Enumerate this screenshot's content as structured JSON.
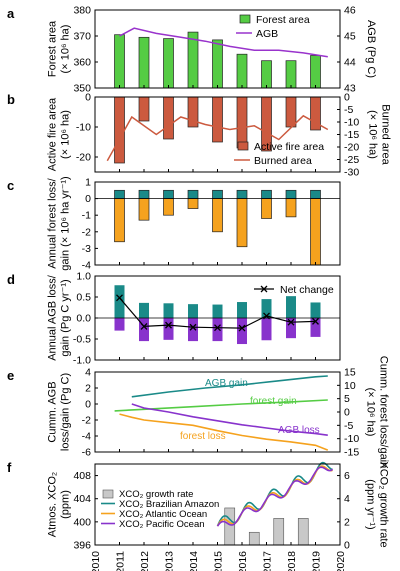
{
  "figure": {
    "year_ticks": [
      "2010",
      "2011",
      "2012",
      "2013",
      "2014",
      "2015",
      "2016",
      "2017",
      "2018",
      "2019",
      "2020"
    ],
    "year_range": [
      2010,
      2020
    ]
  },
  "chart_data": [
    {
      "panel": "a",
      "type": "bar",
      "ylabel_left": "Forest area",
      "ylabel_left_unit": "(× 10⁶ ha)",
      "ylabel_right": "AGB (Pg C)",
      "ylim_left": [
        350,
        380
      ],
      "yticks_left": [
        350,
        360,
        370,
        380
      ],
      "ylim_right": [
        43,
        46
      ],
      "yticks_right": [
        43,
        44,
        45,
        46
      ],
      "legend": [
        "Forest area",
        "AGB"
      ],
      "colors": {
        "bar": "#55cc44",
        "line": "#9933cc"
      },
      "series": [
        {
          "name": "Forest area",
          "axis": "left",
          "kind": "bar",
          "x": [
            2011,
            2012,
            2013,
            2014,
            2015,
            2016,
            2017,
            2018,
            2019
          ],
          "values": [
            370.5,
            369.5,
            369,
            371.5,
            368.5,
            363,
            360.5,
            360.5,
            362.5
          ]
        },
        {
          "name": "AGB",
          "axis": "right",
          "kind": "line",
          "x": [
            2011,
            2011.6,
            2012.5,
            2013.5,
            2014.5,
            2015.5,
            2016.5,
            2017.5,
            2018.5,
            2019.5
          ],
          "values": [
            45.0,
            45.3,
            45.1,
            44.95,
            44.8,
            44.6,
            44.45,
            44.45,
            44.35,
            44.2
          ]
        }
      ]
    },
    {
      "panel": "b",
      "type": "bar",
      "ylabel_left": "Active fire area",
      "ylabel_left_unit": "(× 10⁶ ha)",
      "ylabel_right": "Burned area",
      "ylabel_right_unit": "(× 10⁶ ha)",
      "ylim_left": [
        -25,
        0
      ],
      "yticks_left": [
        -20,
        -10,
        0
      ],
      "ylim_right": [
        -30,
        0
      ],
      "yticks_right": [
        -30,
        -25,
        -20,
        -15,
        -10,
        -5,
        0
      ],
      "legend": [
        "Active fire area",
        "Burned area"
      ],
      "colors": {
        "bar": "#cc5a3f",
        "line": "#cc5a3f"
      },
      "series": [
        {
          "name": "Active fire area",
          "axis": "left",
          "kind": "bar",
          "x": [
            2011,
            2012,
            2013,
            2014,
            2015,
            2016,
            2017,
            2018,
            2019
          ],
          "values": [
            -22,
            -8,
            -14,
            -10,
            -15,
            -17,
            -18,
            -10,
            -11
          ]
        },
        {
          "name": "Burned area",
          "axis": "right",
          "kind": "line",
          "x": [
            2010.5,
            2011.5,
            2012.5,
            2013.5,
            2014.5,
            2015.5,
            2016.5,
            2017.5,
            2018.5,
            2019.5
          ],
          "values": [
            -25.5,
            -8,
            -15,
            -8,
            -11,
            -13,
            -11.5,
            -17,
            -7.5,
            -13
          ]
        }
      ]
    },
    {
      "panel": "c",
      "type": "bar",
      "ylabel": "Annual forest loss/ gain (× 10⁶ ha yr⁻¹)",
      "ylim": [
        -4,
        1
      ],
      "yticks": [
        -4,
        -3,
        -2,
        -1,
        0,
        1
      ],
      "colors": {
        "gain": "#1a8a88",
        "loss": "#f5a21e"
      },
      "series": [
        {
          "name": "gain",
          "x": [
            2011,
            2012,
            2013,
            2014,
            2015,
            2016,
            2017,
            2018,
            2019
          ],
          "values": [
            0.5,
            0.5,
            0.5,
            0.5,
            0.5,
            0.5,
            0.5,
            0.5,
            0.5
          ]
        },
        {
          "name": "loss",
          "x": [
            2011,
            2012,
            2013,
            2014,
            2015,
            2016,
            2017,
            2018,
            2019
          ],
          "values": [
            -2.6,
            -1.3,
            -1.0,
            -0.6,
            -2.0,
            -2.9,
            -1.2,
            -1.1,
            -4.0
          ]
        }
      ]
    },
    {
      "panel": "d",
      "type": "bar",
      "ylabel": "Annual AGB loss/ gain (Pg C yr⁻¹)",
      "ylim": [
        -1.0,
        1.0
      ],
      "yticks": [
        -1.0,
        -0.5,
        0.0,
        0.5,
        1.0
      ],
      "legend": [
        "Net change"
      ],
      "colors": {
        "gain": "#1a8a88",
        "loss": "#8833cc",
        "net": "#000000"
      },
      "series": [
        {
          "name": "gain",
          "x": [
            2011,
            2012,
            2013,
            2014,
            2015,
            2016,
            2017,
            2018,
            2019
          ],
          "values": [
            0.78,
            0.36,
            0.35,
            0.33,
            0.32,
            0.38,
            0.45,
            0.52,
            0.37
          ]
        },
        {
          "name": "loss",
          "x": [
            2011,
            2012,
            2013,
            2014,
            2015,
            2016,
            2017,
            2018,
            2019
          ],
          "values": [
            -0.3,
            -0.55,
            -0.52,
            -0.55,
            -0.55,
            -0.62,
            -0.53,
            -0.48,
            -0.45
          ]
        },
        {
          "name": "Net change",
          "kind": "line",
          "x": [
            2011,
            2012,
            2013,
            2014,
            2015,
            2016,
            2017,
            2018,
            2019
          ],
          "values": [
            0.48,
            -0.2,
            -0.17,
            -0.22,
            -0.23,
            -0.24,
            0.05,
            -0.1,
            -0.08
          ]
        }
      ]
    },
    {
      "panel": "e",
      "type": "line",
      "ylabel_left": "Cumm. AGB loss/gain (Pg C)",
      "ylabel_right": "Cumm. forest loss/gain",
      "ylabel_right_unit": "(× 10⁶ ha)",
      "ylim_left": [
        -6,
        4
      ],
      "yticks_left": [
        -6,
        -4,
        -2,
        0,
        2,
        4
      ],
      "ylim_right": [
        -15,
        15
      ],
      "yticks_right": [
        -15,
        -10,
        -5,
        0,
        5,
        10,
        15
      ],
      "colors": {
        "AGB gain": "#1a8a88",
        "forest gain": "#55cc44",
        "forest loss": "#f5a21e",
        "AGB loss": "#8833cc"
      },
      "series": [
        {
          "name": "AGB gain",
          "axis": "left",
          "x": [
            2011.5,
            2013,
            2014.5,
            2016,
            2017.5,
            2019,
            2019.5
          ],
          "values": [
            0.9,
            1.5,
            2.0,
            2.4,
            2.9,
            3.4,
            3.5
          ]
        },
        {
          "name": "forest gain",
          "axis": "right",
          "x": [
            2010.8,
            2012,
            2014,
            2016,
            2018,
            2019.5
          ],
          "values": [
            0.4,
            1.0,
            2.0,
            3.0,
            3.8,
            4.5
          ]
        },
        {
          "name": "forest loss",
          "axis": "right",
          "x": [
            2011,
            2011.5,
            2012,
            2013,
            2014,
            2015,
            2016,
            2017,
            2018,
            2019,
            2019.5
          ],
          "values": [
            -0.8,
            -2.0,
            -3.0,
            -4.0,
            -5.0,
            -7.0,
            -8.8,
            -10.2,
            -11.2,
            -12.5,
            -14.3
          ]
        },
        {
          "name": "AGB loss",
          "axis": "left",
          "x": [
            2011.5,
            2012,
            2013,
            2014,
            2015,
            2016,
            2017,
            2018,
            2019,
            2019.5
          ],
          "values": [
            0.0,
            -0.5,
            -1.0,
            -1.6,
            -2.1,
            -2.6,
            -3.0,
            -3.4,
            -3.7,
            -3.9
          ]
        }
      ]
    },
    {
      "panel": "f",
      "type": "line",
      "ylabel_left": "Atmos. XCO₂",
      "ylabel_left_unit": "(ppm)",
      "ylabel_right": "XCO₂ growth rate",
      "ylabel_right_unit": "(ppm yr⁻¹)",
      "ylim_left": [
        396,
        410
      ],
      "yticks_left": [
        396,
        400,
        404,
        408
      ],
      "ylim_right": [
        0,
        7
      ],
      "yticks_right": [
        0,
        2,
        4,
        6
      ],
      "legend": [
        "XCO₂ growth rate",
        "XCO₂ Brazilian Amazon",
        "XCO₂ Atlantic Ocean",
        "XCO₂ Pacific Ocean"
      ],
      "colors": {
        "growth": "#c8c8c8",
        "Brazilian Amazon": "#1a8a88",
        "Atlantic Ocean": "#f5a21e",
        "Pacific Ocean": "#8833cc"
      },
      "series": [
        {
          "name": "XCO₂ growth rate",
          "axis": "right",
          "kind": "bar",
          "x": [
            2015.5,
            2016.5,
            2017.5,
            2018.5
          ],
          "values": [
            3.2,
            1.1,
            2.3,
            2.3
          ]
        },
        {
          "name": "XCO₂ Brazilian Amazon",
          "axis": "left",
          "start": 2015.0,
          "end": 2019.7,
          "base": 399.3,
          "trend": 2.3,
          "amp": 1.1
        },
        {
          "name": "XCO₂ Atlantic Ocean",
          "axis": "left",
          "start": 2015.0,
          "end": 2019.7,
          "base": 399.0,
          "trend": 2.3,
          "amp": 0.9
        },
        {
          "name": "XCO₂ Pacific Ocean",
          "axis": "left",
          "start": 2015.0,
          "end": 2019.7,
          "base": 398.8,
          "trend": 2.35,
          "amp": 0.8
        }
      ]
    }
  ]
}
